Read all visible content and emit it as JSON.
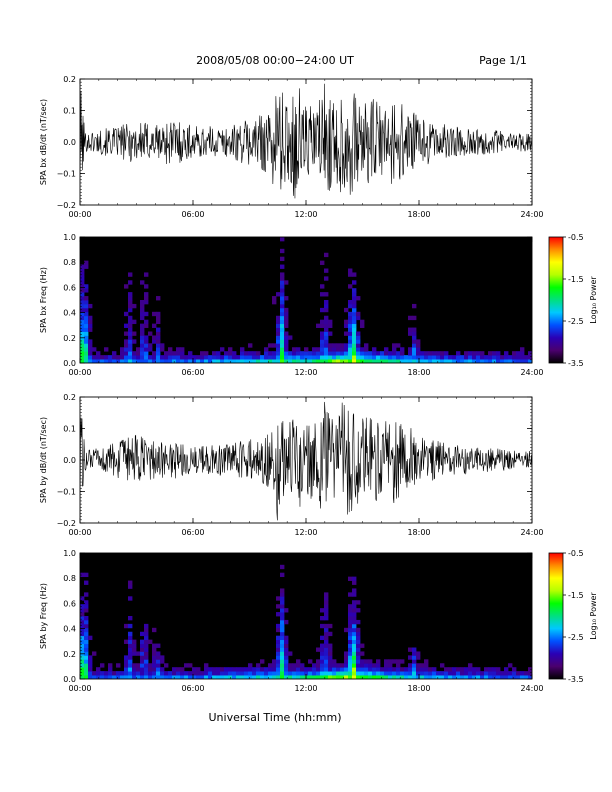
{
  "header": {
    "title": "2008/05/08  00:00−24:00 UT",
    "page": "Page 1/1"
  },
  "footer": {
    "xlabel": "Universal Time (hh:mm)"
  },
  "colors": {
    "trace": "#000000",
    "spectrogram_background": "#000000",
    "colormap": [
      "#000000",
      "#4b006e",
      "#2a00b5",
      "#0050ff",
      "#00c8ff",
      "#00e080",
      "#00ff00",
      "#b4ff00",
      "#ffff00",
      "#ff8c00",
      "#ff0000"
    ]
  },
  "chart_data": [
    {
      "type": "line",
      "ylabel": "SPA bx dB/dt (nT/sec)",
      "xlim": [
        0,
        24
      ],
      "ylim": [
        -0.2,
        0.2
      ],
      "xticks": [
        "00:00",
        "06:00",
        "12:00",
        "18:00",
        "24:00"
      ],
      "yticks": [
        "0.2",
        "0.1",
        "0.0",
        "−0.1",
        "−0.2"
      ],
      "x_hours": [
        0,
        0.3,
        1,
        2,
        3,
        4,
        5,
        6,
        7,
        8,
        9,
        10,
        10.5,
        11,
        11.5,
        12,
        12.5,
        13,
        13.5,
        14,
        14.5,
        15,
        15.5,
        16,
        16.5,
        17,
        18,
        19,
        20,
        21,
        22,
        23,
        24
      ],
      "envelope_amplitude": [
        0.2,
        0.03,
        0.04,
        0.05,
        0.07,
        0.06,
        0.08,
        0.05,
        0.05,
        0.05,
        0.08,
        0.1,
        0.2,
        0.12,
        0.2,
        0.14,
        0.1,
        0.2,
        0.12,
        0.2,
        0.16,
        0.12,
        0.14,
        0.12,
        0.14,
        0.13,
        0.08,
        0.06,
        0.05,
        0.04,
        0.04,
        0.03,
        0.03
      ]
    },
    {
      "type": "heatmap",
      "ylabel": "SPA bx Freq (Hz)",
      "xlim": [
        0,
        24
      ],
      "ylim": [
        0.0,
        1.0
      ],
      "xticks": [
        "00:00",
        "06:00",
        "12:00",
        "18:00",
        "24:00"
      ],
      "yticks": [
        "1.0",
        "0.8",
        "0.6",
        "0.4",
        "0.2",
        "0.0"
      ],
      "colorbar": {
        "label": "Log₁₀ Power",
        "range": [
          -3.5,
          -0.5
        ],
        "ticks": [
          "-0.5",
          "-1.5",
          "-2.5",
          "-3.5"
        ]
      },
      "bursts": [
        {
          "t": 0.2,
          "fmax": 0.9,
          "level": 0.9
        },
        {
          "t": 2.6,
          "fmax": 0.95,
          "level": 0.45
        },
        {
          "t": 3.4,
          "fmax": 0.9,
          "level": 0.45
        },
        {
          "t": 4.1,
          "fmax": 0.6,
          "level": 0.4
        },
        {
          "t": 10.7,
          "fmax": 1.0,
          "level": 0.7
        },
        {
          "t": 13.0,
          "fmax": 0.95,
          "level": 0.5
        },
        {
          "t": 14.5,
          "fmax": 0.75,
          "level": 0.95
        },
        {
          "t": 17.7,
          "fmax": 0.5,
          "level": 0.5
        }
      ]
    },
    {
      "type": "line",
      "ylabel": "SPA by dB/dt (nT/sec)",
      "xlim": [
        0,
        24
      ],
      "ylim": [
        -0.2,
        0.2
      ],
      "xticks": [
        "00:00",
        "06:00",
        "12:00",
        "18:00",
        "24:00"
      ],
      "yticks": [
        "0.2",
        "0.1",
        "0.0",
        "−0.1",
        "−0.2"
      ],
      "x_hours": [
        0,
        0.3,
        1,
        2,
        3,
        4,
        5,
        6,
        7,
        8,
        9,
        10,
        10.5,
        11,
        11.5,
        12,
        12.5,
        13,
        13.5,
        14,
        14.5,
        15,
        15.5,
        16,
        16.5,
        17,
        18,
        19,
        20,
        21,
        22,
        23,
        24
      ],
      "envelope_amplitude": [
        0.2,
        0.03,
        0.04,
        0.06,
        0.08,
        0.06,
        0.06,
        0.04,
        0.05,
        0.05,
        0.07,
        0.09,
        0.2,
        0.12,
        0.16,
        0.14,
        0.12,
        0.2,
        0.12,
        0.2,
        0.16,
        0.14,
        0.14,
        0.12,
        0.14,
        0.13,
        0.08,
        0.06,
        0.05,
        0.04,
        0.04,
        0.03,
        0.03
      ]
    },
    {
      "type": "heatmap",
      "ylabel": "SPA by Freq (Hz)",
      "xlim": [
        0,
        24
      ],
      "ylim": [
        0.0,
        1.0
      ],
      "xticks": [
        "00:00",
        "06:00",
        "12:00",
        "18:00",
        "24:00"
      ],
      "yticks": [
        "1.0",
        "0.8",
        "0.6",
        "0.4",
        "0.2",
        "0.0"
      ],
      "colorbar": {
        "label": "Log₁₀ Power",
        "range": [
          -3.5,
          -0.5
        ],
        "ticks": [
          "-0.5",
          "-1.5",
          "-2.5",
          "-3.5"
        ]
      },
      "bursts": [
        {
          "t": 0.2,
          "fmax": 0.9,
          "level": 0.9
        },
        {
          "t": 2.6,
          "fmax": 0.95,
          "level": 0.45
        },
        {
          "t": 3.4,
          "fmax": 0.9,
          "level": 0.45
        },
        {
          "t": 4.1,
          "fmax": 0.6,
          "level": 0.4
        },
        {
          "t": 10.7,
          "fmax": 1.0,
          "level": 0.7
        },
        {
          "t": 13.0,
          "fmax": 0.9,
          "level": 0.5
        },
        {
          "t": 14.5,
          "fmax": 0.8,
          "level": 0.95
        },
        {
          "t": 17.7,
          "fmax": 0.5,
          "level": 0.5
        }
      ]
    }
  ]
}
